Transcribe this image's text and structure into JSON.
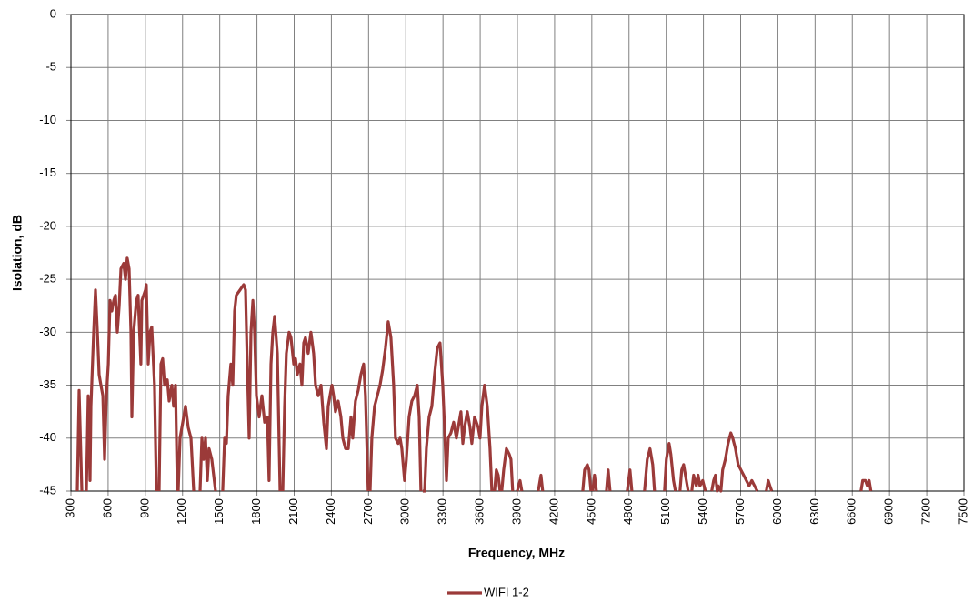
{
  "chart_data": {
    "type": "line",
    "x_label": "Frequency, MHz",
    "y_label": "Isolation, dB",
    "xlim": [
      300,
      7500
    ],
    "xticks": [
      300,
      600,
      900,
      1200,
      1500,
      1800,
      2100,
      2400,
      2700,
      3000,
      3300,
      3600,
      3900,
      4200,
      4500,
      4800,
      5100,
      5400,
      5700,
      6000,
      6300,
      6600,
      6900,
      7200,
      7500
    ],
    "ylim": [
      -45,
      0
    ],
    "yticks": [
      0,
      -5,
      -10,
      -15,
      -20,
      -25,
      -30,
      -35,
      -40,
      -45
    ],
    "grid": true,
    "legend": "bottom",
    "x": [
      351,
      366,
      388,
      400,
      425,
      439,
      454,
      461,
      483,
      498,
      513,
      527,
      542,
      557,
      571,
      586,
      601,
      615,
      630,
      645,
      659,
      674,
      689,
      703,
      725,
      740,
      754,
      769,
      784,
      791,
      806,
      828,
      842,
      864,
      872,
      901,
      908,
      923,
      938,
      952,
      974,
      989,
      1000,
      1011,
      1026,
      1040,
      1055,
      1077,
      1092,
      1114,
      1128,
      1143,
      1158,
      1160,
      1165,
      1180,
      1202,
      1224,
      1246,
      1268,
      1290,
      1310,
      1341,
      1356,
      1370,
      1385,
      1400,
      1414,
      1436,
      1466,
      1495,
      1524,
      1539,
      1554,
      1568,
      1590,
      1605,
      1620,
      1634,
      1664,
      1693,
      1708,
      1722,
      1737,
      1752,
      1767,
      1781,
      1796,
      1818,
      1840,
      1862,
      1884,
      1898,
      1913,
      1928,
      1942,
      1964,
      1986,
      2000,
      2008,
      2023,
      2037,
      2059,
      2074,
      2096,
      2111,
      2125,
      2147,
      2162,
      2177,
      2191,
      2213,
      2235,
      2257,
      2272,
      2294,
      2316,
      2338,
      2360,
      2374,
      2389,
      2404,
      2418,
      2433,
      2455,
      2477,
      2492,
      2514,
      2536,
      2558,
      2572,
      2594,
      2616,
      2638,
      2660,
      2675,
      2697,
      2705,
      2712,
      2726,
      2748,
      2770,
      2792,
      2814,
      2836,
      2858,
      2880,
      2902,
      2917,
      2939,
      2954,
      2968,
      2990,
      3005,
      3027,
      3049,
      3071,
      3093,
      3108,
      3122,
      3130,
      3137,
      3152,
      3166,
      3188,
      3210,
      3232,
      3254,
      3276,
      3298,
      3313,
      3328,
      3342,
      3364,
      3386,
      3408,
      3423,
      3445,
      3460,
      3474,
      3496,
      3518,
      3533,
      3555,
      3569,
      3584,
      3599,
      3613,
      3635,
      3657,
      3679,
      3694,
      3700,
      3716,
      3730,
      3745,
      3760,
      3765,
      3774,
      3789,
      3811,
      3833,
      3848,
      3862,
      3880,
      3899,
      3921,
      3936,
      4000,
      4068,
      4090,
      4104,
      4300,
      4427,
      4442,
      4464,
      4478,
      4493,
      4500,
      4508,
      4522,
      4537,
      4580,
      4618,
      4632,
      4647,
      4700,
      4786,
      4808,
      4823,
      4880,
      4925,
      4947,
      4969,
      4991,
      5006,
      5050,
      5086,
      5101,
      5123,
      5137,
      5159,
      5174,
      5190,
      5211,
      5225,
      5240,
      5262,
      5277,
      5290,
      5306,
      5321,
      5343,
      5357,
      5372,
      5394,
      5416,
      5440,
      5467,
      5482,
      5497,
      5511,
      5519,
      5541,
      5555,
      5577,
      5599,
      5621,
      5636,
      5658,
      5680,
      5702,
      5724,
      5746,
      5768,
      5790,
      5812,
      5834,
      5870,
      5907,
      5922,
      5936,
      5951,
      6300,
      6670,
      6684,
      6706,
      6721,
      6736,
      6750
    ],
    "series": [
      {
        "name": "WIFI 1-2",
        "color": "#9b3a39",
        "values": [
          -45,
          -35.5,
          -45,
          null,
          -45,
          -36,
          -44,
          -37,
          -30,
          -26,
          -30,
          -34,
          -35,
          -36,
          -42,
          -36,
          -33,
          -27,
          -28,
          -27,
          -26.5,
          -30,
          -27.5,
          -24,
          -23.5,
          -25,
          -23,
          -24,
          -30,
          -38,
          -30,
          -27,
          -26.5,
          -33,
          -27,
          -26,
          -25.5,
          -33,
          -30,
          -29.5,
          -35,
          -45,
          null,
          -45,
          -33,
          -32.5,
          -35,
          -34.5,
          -36.5,
          -35,
          -37,
          -35,
          -45,
          null,
          -45,
          -40,
          -38.5,
          -37,
          -39,
          -40,
          -45,
          null,
          -45,
          -40,
          -42,
          -40,
          -44,
          -41,
          -42,
          -45,
          null,
          -45,
          -40,
          -40.5,
          -36,
          -33,
          -35,
          -28,
          -26.5,
          -26,
          -25.5,
          -26,
          -33,
          -40,
          -30,
          -27,
          -30,
          -36,
          -38,
          -36,
          -38.5,
          -38,
          -44,
          -33,
          -30,
          -28.5,
          -32,
          -45,
          null,
          -45,
          -37,
          -32,
          -30,
          -30.5,
          -33,
          -32.5,
          -34,
          -33,
          -35,
          -31,
          -30.5,
          -32,
          -30,
          -32,
          -35,
          -36,
          -35,
          -38.5,
          -41,
          -37,
          -36,
          -35,
          -36,
          -37.5,
          -36.5,
          -38,
          -40,
          -41,
          -41,
          -38,
          -40,
          -36.5,
          -35.5,
          -34,
          -33,
          -36,
          -45,
          null,
          -45,
          -40,
          -37,
          -36,
          -35,
          -33.5,
          -31.5,
          -29,
          -30.5,
          -35,
          -40,
          -40.5,
          -40,
          -41,
          -44,
          -42,
          -38,
          -36.5,
          -36,
          -35,
          -38,
          -45,
          null,
          -45,
          -45,
          -41,
          -38,
          -37,
          -34,
          -31.5,
          -31,
          -35,
          -39,
          -44,
          -40,
          -39.5,
          -38.5,
          -40,
          -39,
          -37.5,
          -40.5,
          -39,
          -37.5,
          -39,
          -40.5,
          -38,
          -38.5,
          -39,
          -40,
          -37,
          -35,
          -37,
          -41,
          -45,
          null,
          -45,
          -43,
          -43.5,
          -45,
          null,
          -45,
          -43,
          -41,
          -41.5,
          -42,
          -45,
          null,
          -45,
          -44,
          -45,
          null,
          -45,
          -43.5,
          -45,
          null,
          -45,
          -43,
          -42.5,
          -43,
          -45,
          null,
          -45,
          -43.5,
          -45,
          null,
          -45,
          -43,
          -45,
          null,
          -45,
          -43,
          -45,
          null,
          -45,
          -42,
          -41,
          -42.5,
          -45,
          null,
          -45,
          -42,
          -40.5,
          -41.5,
          -44,
          -45,
          null,
          -45,
          -43,
          -42.5,
          -44,
          -45,
          null,
          -45,
          -43.5,
          -44.5,
          -43.5,
          -44.5,
          -44,
          -45,
          null,
          -45,
          -44,
          -43.5,
          -45,
          -44.5,
          -45,
          -43,
          -42,
          -40.5,
          -39.5,
          -40,
          -41,
          -42.5,
          -43,
          -43.5,
          -44,
          -44.5,
          -44,
          -44.5,
          -45,
          null,
          -45,
          -44,
          -44.5,
          -45,
          null,
          -45,
          -44,
          -44,
          -44.5,
          -44,
          -45
        ]
      }
    ]
  }
}
